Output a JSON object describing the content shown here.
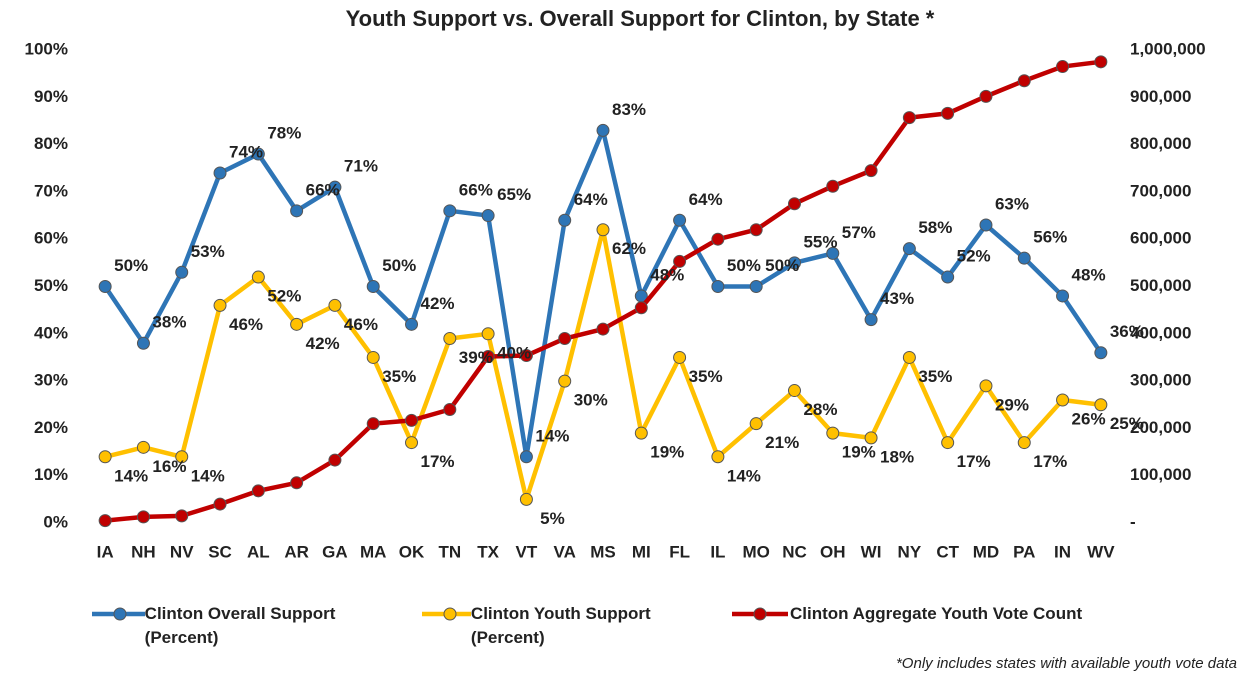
{
  "chart_data": {
    "type": "line",
    "title": "Youth Support vs. Overall Support for Clinton, by State *",
    "footnote": "*Only includes states with available youth vote data",
    "categories": [
      "IA",
      "NH",
      "NV",
      "SC",
      "AL",
      "AR",
      "GA",
      "MA",
      "OK",
      "TN",
      "TX",
      "VT",
      "VA",
      "MS",
      "MI",
      "FL",
      "IL",
      "MO",
      "NC",
      "OH",
      "WI",
      "NY",
      "CT",
      "MD",
      "PA",
      "IN",
      "WV"
    ],
    "series": [
      {
        "name": "Clinton Overall Support (Percent)",
        "color": "#2e75b6",
        "values": [
          50,
          38,
          53,
          74,
          78,
          66,
          71,
          50,
          42,
          66,
          65,
          14,
          64,
          83,
          48,
          64,
          50,
          50,
          55,
          57,
          43,
          58,
          52,
          63,
          56,
          48,
          36
        ],
        "value_labels": [
          "50%",
          "38%",
          "53%",
          "74%",
          "78%",
          "66%",
          "71%",
          "50%",
          "42%",
          "66%",
          "65%",
          "14%",
          "64%",
          "83%",
          "48%",
          "64%",
          "50%",
          "50%",
          "55%",
          "57%",
          "43%",
          "58%",
          "52%",
          "63%",
          "56%",
          "48%",
          "36%"
        ]
      },
      {
        "name": "Clinton Youth Support (Percent)",
        "color": "#ffc000",
        "values": [
          14,
          16,
          14,
          46,
          52,
          42,
          46,
          35,
          17,
          39,
          40,
          5,
          30,
          62,
          19,
          35,
          14,
          21,
          28,
          19,
          18,
          35,
          17,
          29,
          17,
          26,
          25
        ],
        "value_labels": [
          "14%",
          "16%",
          "14%",
          "46%",
          "52%",
          "42%",
          "46%",
          "35%",
          "17%",
          "39%",
          "40%",
          "5%",
          "30%",
          "62%",
          "19%",
          "35%",
          "14%",
          "21%",
          "28%",
          "19%",
          "18%",
          "35%",
          "17%",
          "29%",
          "17%",
          "26%",
          "25%"
        ]
      },
      {
        "name": "Clinton Aggregate Youth Vote Count",
        "color": "#c00000",
        "axis": "y2",
        "values": [
          5000,
          13000,
          15000,
          40000,
          68000,
          85000,
          133000,
          210000,
          217000,
          240000,
          352000,
          354000,
          390000,
          410000,
          455000,
          553000,
          600000,
          620000,
          675000,
          712000,
          745000,
          857000,
          866000,
          902000,
          935000,
          965000,
          975000
        ]
      }
    ],
    "ylim": [
      0,
      100
    ],
    "yticks": [
      {
        "value": 0,
        "label": "0%"
      },
      {
        "value": 10,
        "label": "10%"
      },
      {
        "value": 20,
        "label": "20%"
      },
      {
        "value": 30,
        "label": "30%"
      },
      {
        "value": 40,
        "label": "40%"
      },
      {
        "value": 50,
        "label": "50%"
      },
      {
        "value": 60,
        "label": "60%"
      },
      {
        "value": 70,
        "label": "70%"
      },
      {
        "value": 80,
        "label": "80%"
      },
      {
        "value": 90,
        "label": "90%"
      },
      {
        "value": 100,
        "label": "100%"
      }
    ],
    "y2lim": [
      0,
      1000000
    ],
    "y2ticks": [
      {
        "value": 0,
        "label": "-"
      },
      {
        "value": 100000,
        "label": "100,000"
      },
      {
        "value": 200000,
        "label": "200,000"
      },
      {
        "value": 300000,
        "label": "300,000"
      },
      {
        "value": 400000,
        "label": "400,000"
      },
      {
        "value": 500000,
        "label": "500,000"
      },
      {
        "value": 600000,
        "label": "600,000"
      },
      {
        "value": 700000,
        "label": "700,000"
      },
      {
        "value": 800000,
        "label": "800,000"
      },
      {
        "value": 900000,
        "label": "900,000"
      },
      {
        "value": 1000000,
        "label": "1,000,000"
      }
    ],
    "legend": "bottom"
  }
}
